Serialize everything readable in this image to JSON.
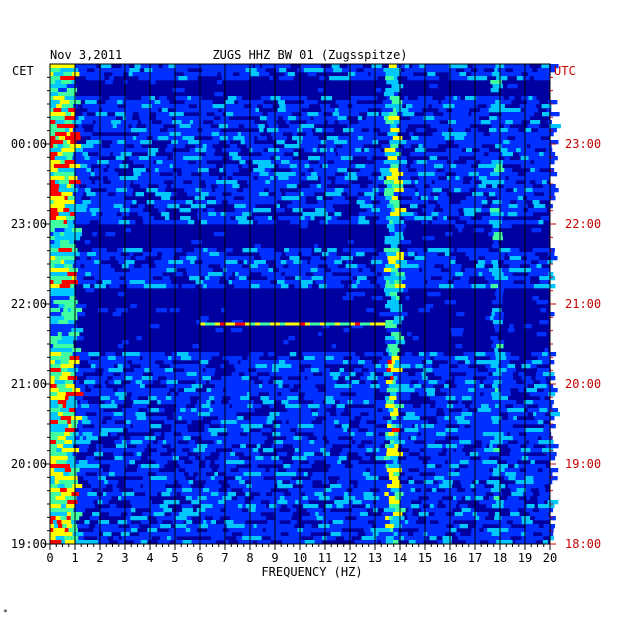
{
  "chart_data": {
    "type": "heatmap",
    "date": "Nov 3,2011",
    "title": "ZUGS HHZ BW 01 (Zugsspitze)",
    "left_tz": "CET",
    "right_tz": "UTC",
    "xlabel": "FREQUENCY (HZ)",
    "xlim": [
      0,
      20
    ],
    "x_ticks": [
      "0",
      "1",
      "2",
      "3",
      "4",
      "5",
      "6",
      "7",
      "8",
      "9",
      "10",
      "11",
      "12",
      "13",
      "14",
      "15",
      "16",
      "17",
      "18",
      "19",
      "20"
    ],
    "cet_ticks": [
      "00:00",
      "23:00",
      "22:00",
      "21:00",
      "20:00",
      "19:00"
    ],
    "utc_ticks": [
      "23:00",
      "22:00",
      "21:00",
      "20:00",
      "19:00",
      "18:00"
    ],
    "tick_hours_utc": [
      23,
      22,
      21,
      20,
      19,
      18
    ],
    "time_range_utc": [
      "18:00",
      "24:00"
    ],
    "colormap": [
      "#0000a0",
      "#0030ff",
      "#00c8ff",
      "#40ffa0",
      "#ffff00",
      "#ff0000"
    ],
    "features": [
      {
        "label": "low-frequency energy",
        "freq_hz": [
          0.1,
          0.8
        ]
      },
      {
        "label": "persistent line",
        "freq_hz": 13.6
      },
      {
        "label": "persistent line",
        "freq_hz": 17.7
      },
      {
        "label": "transient line",
        "freq_hz": [
          6,
          13.5
        ],
        "time_utc": "20:45"
      }
    ],
    "grid": true
  },
  "footer_mark": "*"
}
